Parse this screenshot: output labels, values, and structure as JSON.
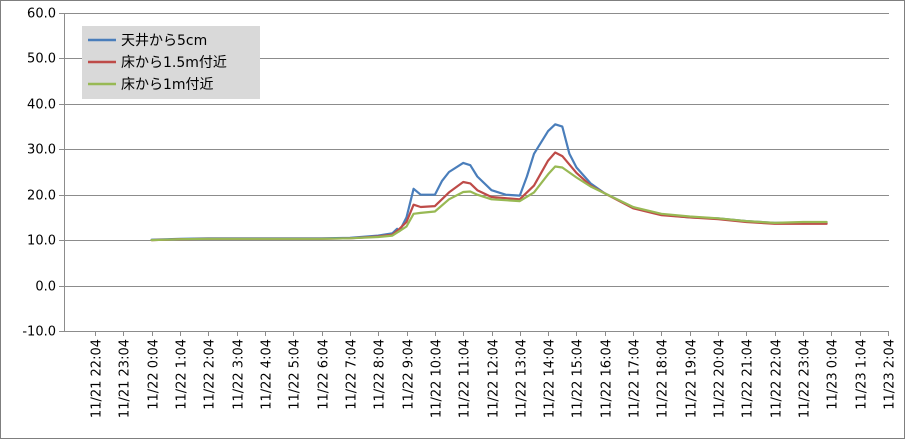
{
  "chart_data": {
    "type": "line",
    "title": "",
    "xlabel": "",
    "ylabel": "",
    "ylim": [
      -10,
      60
    ],
    "y_ticks": [
      "60.0",
      "50.0",
      "40.0",
      "30.0",
      "20.0",
      "10.0",
      "0.0",
      "-10.0"
    ],
    "x_ticks": [
      "11/21 22:04",
      "11/21 23:04",
      "11/22 0:04",
      "11/22 1:04",
      "11/22 2:04",
      "11/22 3:04",
      "11/22 4:04",
      "11/22 5:04",
      "11/22 6:04",
      "11/22 7:04",
      "11/22 8:04",
      "11/22 9:04",
      "11/22 10:04",
      "11/22 11:04",
      "11/22 12:04",
      "11/22 13:04",
      "11/22 14:04",
      "11/22 15:04",
      "11/22 16:04",
      "11/22 17:04",
      "11/22 18:04",
      "11/22 19:04",
      "11/22 20:04",
      "11/22 21:04",
      "11/22 22:04",
      "11/22 23:04",
      "11/23 0:04",
      "11/23 1:04",
      "11/23 2:04"
    ],
    "grid": {
      "horizontal": true,
      "vertical": false
    },
    "legend_position": "top-left",
    "series": [
      {
        "name": "天井から5cm",
        "color": "#4a7ebb",
        "points": [
          [
            "11/22 0:04",
            10.1
          ],
          [
            "11/22 1:04",
            10.3
          ],
          [
            "11/22 2:04",
            10.4
          ],
          [
            "11/22 3:04",
            10.4
          ],
          [
            "11/22 4:04",
            10.4
          ],
          [
            "11/22 5:04",
            10.4
          ],
          [
            "11/22 6:04",
            10.4
          ],
          [
            "11/22 7:04",
            10.5
          ],
          [
            "11/22 8:04",
            11.0
          ],
          [
            "11/22 8:34",
            11.5
          ],
          [
            "11/22 8:44",
            12.5
          ],
          [
            "11/22 8:49",
            12.0
          ],
          [
            "11/22 9:04",
            15.0
          ],
          [
            "11/22 9:19",
            21.3
          ],
          [
            "11/22 9:34",
            20.0
          ],
          [
            "11/22 10:04",
            20.0
          ],
          [
            "11/22 10:19",
            23.0
          ],
          [
            "11/22 10:34",
            25.0
          ],
          [
            "11/22 11:04",
            27.0
          ],
          [
            "11/22 11:19",
            26.5
          ],
          [
            "11/22 11:34",
            24.0
          ],
          [
            "11/22 12:04",
            21.0
          ],
          [
            "11/22 12:34",
            20.0
          ],
          [
            "11/22 13:04",
            19.8
          ],
          [
            "11/22 13:19",
            24.0
          ],
          [
            "11/22 13:34",
            29.0
          ],
          [
            "11/22 14:04",
            34.0
          ],
          [
            "11/22 14:19",
            35.5
          ],
          [
            "11/22 14:34",
            35.0
          ],
          [
            "11/22 14:49",
            29.0
          ],
          [
            "11/22 15:04",
            26.0
          ],
          [
            "11/22 15:34",
            22.5
          ],
          [
            "11/22 16:04",
            20.3
          ],
          [
            "11/22 17:04",
            17.2
          ],
          [
            "11/22 18:04",
            15.6
          ],
          [
            "11/22 19:04",
            15.0
          ],
          [
            "11/22 20:04",
            14.8
          ],
          [
            "11/22 21:04",
            14.2
          ],
          [
            "11/22 22:04",
            13.8
          ],
          [
            "11/22 23:04",
            13.8
          ],
          [
            "11/22 23:54",
            13.8
          ]
        ]
      },
      {
        "name": "床から1.5m付近",
        "color": "#be4b48",
        "points": [
          [
            "11/22 0:04",
            10.0
          ],
          [
            "11/22 1:04",
            10.2
          ],
          [
            "11/22 2:04",
            10.3
          ],
          [
            "11/22 3:04",
            10.3
          ],
          [
            "11/22 4:04",
            10.3
          ],
          [
            "11/22 5:04",
            10.3
          ],
          [
            "11/22 6:04",
            10.3
          ],
          [
            "11/22 7:04",
            10.4
          ],
          [
            "11/22 8:04",
            10.8
          ],
          [
            "11/22 8:34",
            11.2
          ],
          [
            "11/22 8:49",
            12.5
          ],
          [
            "11/22 9:04",
            14.0
          ],
          [
            "11/22 9:19",
            17.8
          ],
          [
            "11/22 9:34",
            17.3
          ],
          [
            "11/22 10:04",
            17.5
          ],
          [
            "11/22 10:34",
            20.5
          ],
          [
            "11/22 11:04",
            22.8
          ],
          [
            "11/22 11:19",
            22.5
          ],
          [
            "11/22 11:34",
            21.0
          ],
          [
            "11/22 12:04",
            19.5
          ],
          [
            "11/22 13:04",
            19.0
          ],
          [
            "11/22 13:34",
            22.0
          ],
          [
            "11/22 14:04",
            27.5
          ],
          [
            "11/22 14:19",
            29.3
          ],
          [
            "11/22 14:34",
            28.5
          ],
          [
            "11/22 15:04",
            24.8
          ],
          [
            "11/22 15:34",
            22.0
          ],
          [
            "11/22 16:04",
            20.3
          ],
          [
            "11/22 17:04",
            17.0
          ],
          [
            "11/22 18:04",
            15.5
          ],
          [
            "11/22 19:04",
            15.0
          ],
          [
            "11/22 20:04",
            14.6
          ],
          [
            "11/22 21:04",
            14.0
          ],
          [
            "11/22 22:04",
            13.6
          ],
          [
            "11/22 23:04",
            13.6
          ],
          [
            "11/22 23:54",
            13.6
          ]
        ]
      },
      {
        "name": "床から1m付近",
        "color": "#98b954",
        "points": [
          [
            "11/22 0:04",
            10.0
          ],
          [
            "11/22 1:04",
            10.2
          ],
          [
            "11/22 2:04",
            10.3
          ],
          [
            "11/22 3:04",
            10.3
          ],
          [
            "11/22 4:04",
            10.3
          ],
          [
            "11/22 5:04",
            10.3
          ],
          [
            "11/22 6:04",
            10.3
          ],
          [
            "11/22 7:04",
            10.4
          ],
          [
            "11/22 8:04",
            10.7
          ],
          [
            "11/22 8:34",
            11.0
          ],
          [
            "11/22 8:49",
            12.0
          ],
          [
            "11/22 9:04",
            13.0
          ],
          [
            "11/22 9:19",
            15.8
          ],
          [
            "11/22 9:34",
            16.0
          ],
          [
            "11/22 10:04",
            16.3
          ],
          [
            "11/22 10:34",
            19.0
          ],
          [
            "11/22 11:04",
            20.6
          ],
          [
            "11/22 11:19",
            20.7
          ],
          [
            "11/22 11:34",
            20.0
          ],
          [
            "11/22 12:04",
            19.0
          ],
          [
            "11/22 13:04",
            18.6
          ],
          [
            "11/22 13:34",
            20.5
          ],
          [
            "11/22 14:04",
            24.5
          ],
          [
            "11/22 14:19",
            26.2
          ],
          [
            "11/22 14:34",
            26.0
          ],
          [
            "11/22 15:04",
            23.8
          ],
          [
            "11/22 15:34",
            21.8
          ],
          [
            "11/22 16:04",
            20.3
          ],
          [
            "11/22 17:04",
            17.3
          ],
          [
            "11/22 18:04",
            15.8
          ],
          [
            "11/22 19:04",
            15.2
          ],
          [
            "11/22 20:04",
            14.8
          ],
          [
            "11/22 21:04",
            14.2
          ],
          [
            "11/22 22:04",
            13.8
          ],
          [
            "11/22 23:04",
            14.0
          ],
          [
            "11/22 23:54",
            14.0
          ]
        ]
      }
    ]
  }
}
